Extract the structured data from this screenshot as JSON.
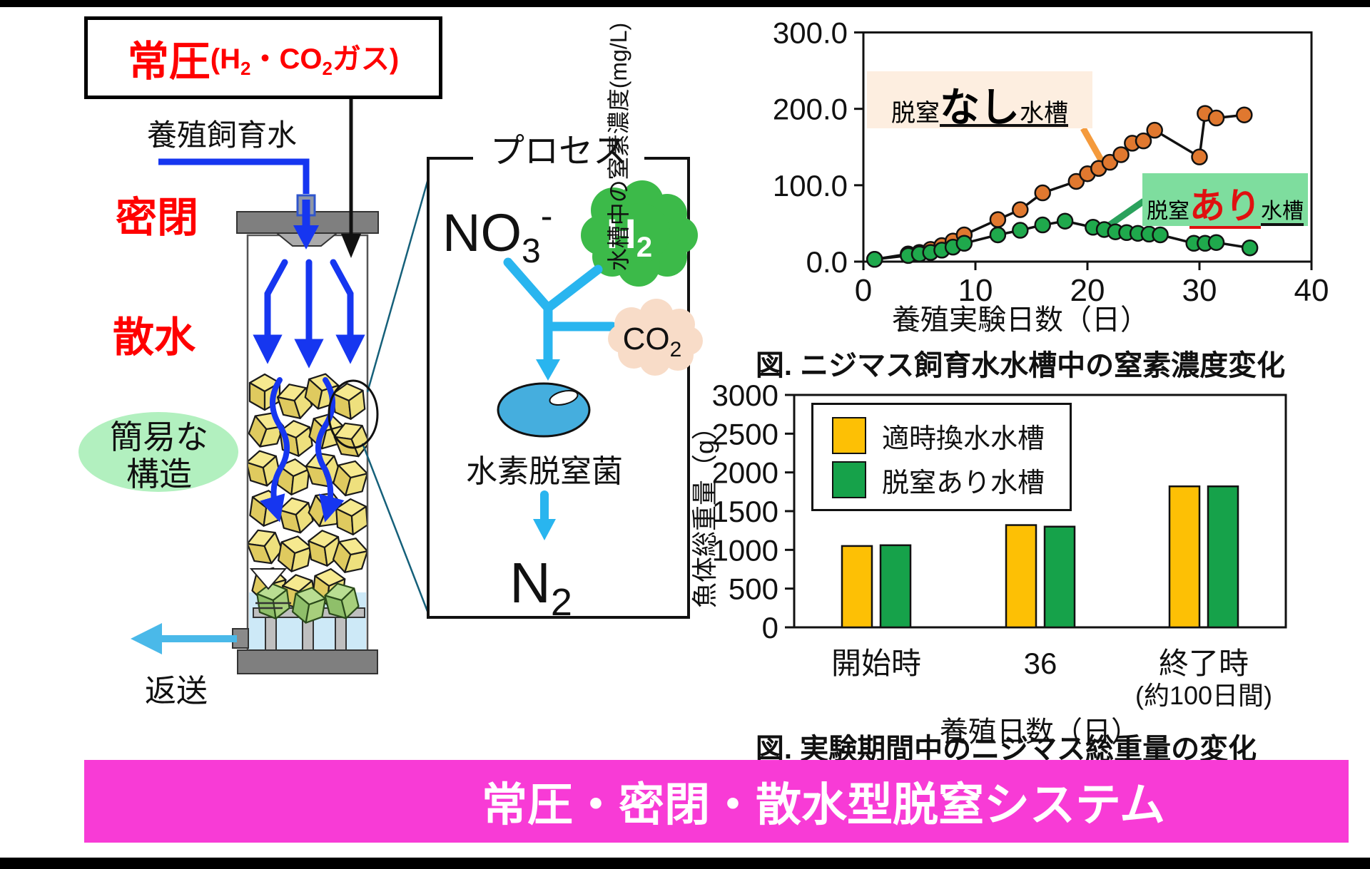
{
  "diagram": {
    "pressure_box": {
      "main": "常圧",
      "p1": " (H",
      "sub1": "2",
      "p2": "・CO",
      "sub2": "2",
      "p3": "ガス)"
    },
    "feed_water": "養殖飼育水",
    "sealed": "密閉",
    "spray": "散水",
    "simple1": "簡易な",
    "simple2": "構造",
    "return_label": "返送",
    "process": {
      "title": "プロセス",
      "no3_base": "NO",
      "no3_sub": "3",
      "no3_sup": "-",
      "h2_base": "H",
      "h2_sub": "2",
      "co2_base": "CO",
      "co2_sub": "2",
      "bacteria": "水素脱窒菌",
      "n2_base": "N",
      "n2_sub": "2"
    }
  },
  "chart_data": [
    {
      "type": "line",
      "ylabel": "水槽中の窒素濃度(mg/L)",
      "xlabel": "養殖実験日数（日）",
      "caption": "図. ニジマス飼育水水槽中の窒素濃度変化",
      "xlim": [
        0,
        40
      ],
      "ylim": [
        0,
        300
      ],
      "xticks": [
        0,
        10,
        20,
        30,
        40
      ],
      "ytick_labels": [
        "0.0",
        "100.0",
        "200.0",
        "300.0"
      ],
      "ytick_values": [
        0,
        100,
        200,
        300
      ],
      "grid": false,
      "series": [
        {
          "name": "脱窒なし水槽",
          "color": "#e0782f",
          "x": [
            1,
            4,
            5,
            6,
            7,
            8,
            9,
            12,
            14,
            16,
            19,
            20,
            21,
            22,
            23,
            24,
            25,
            26,
            30,
            30.5,
            31.5,
            34
          ],
          "y": [
            3,
            10,
            12,
            16,
            21,
            27,
            35,
            55,
            68,
            90,
            105,
            115,
            122,
            130,
            140,
            155,
            158,
            172,
            137,
            194,
            188,
            192
          ]
        },
        {
          "name": "脱窒あり水槽",
          "color": "#1fa94c",
          "x": [
            1,
            4,
            5,
            6,
            7,
            8,
            9,
            12,
            14,
            16,
            18,
            20.5,
            21.5,
            22.5,
            23.5,
            24.5,
            25.5,
            26.5,
            29.5,
            30.5,
            31.5,
            34.5
          ],
          "y": [
            3,
            8,
            10,
            12,
            15,
            19,
            24,
            35,
            41,
            48,
            53,
            45,
            42,
            39,
            38,
            37,
            36,
            35,
            24,
            24,
            25,
            18
          ]
        }
      ],
      "annotations": [
        {
          "prefix": "脱窒",
          "big": "なし",
          "suffix": "水槽",
          "bg": "#fdeee0",
          "callout_color": "#f49a3c",
          "big_color": "#111111"
        },
        {
          "prefix": "脱窒",
          "big": "あり",
          "suffix": "水槽",
          "bg": "#7edd9e",
          "callout_color": "#2aa25c",
          "big_color": "#e01010"
        }
      ]
    },
    {
      "type": "bar",
      "ylabel": "魚体総重量（g）",
      "xlabel": "養殖日数（日）",
      "caption": "図. 実験期間中のニジマス総重量の変化",
      "ylim": [
        0,
        3000
      ],
      "yticks": [
        "0",
        "500",
        "1000",
        "1500",
        "2000",
        "2500",
        "3000"
      ],
      "ytick_values": [
        0,
        500,
        1000,
        1500,
        2000,
        2500,
        3000
      ],
      "grid": false,
      "legend_position": "upper-left",
      "categories": [
        {
          "label": "開始時",
          "sub": ""
        },
        {
          "label": "36",
          "sub": ""
        },
        {
          "label": "終了時",
          "sub": "(約100日間)"
        }
      ],
      "series": [
        {
          "name": "適時換水水槽",
          "color": "#fdc005",
          "values": [
            1050,
            1320,
            1820
          ]
        },
        {
          "name": "脱窒あり水槽",
          "color": "#16a24a",
          "values": [
            1060,
            1300,
            1820
          ]
        }
      ]
    }
  ],
  "banner": {
    "text": "常圧・密閉・散水型脱窒システム",
    "bg": "#f83bd6"
  }
}
